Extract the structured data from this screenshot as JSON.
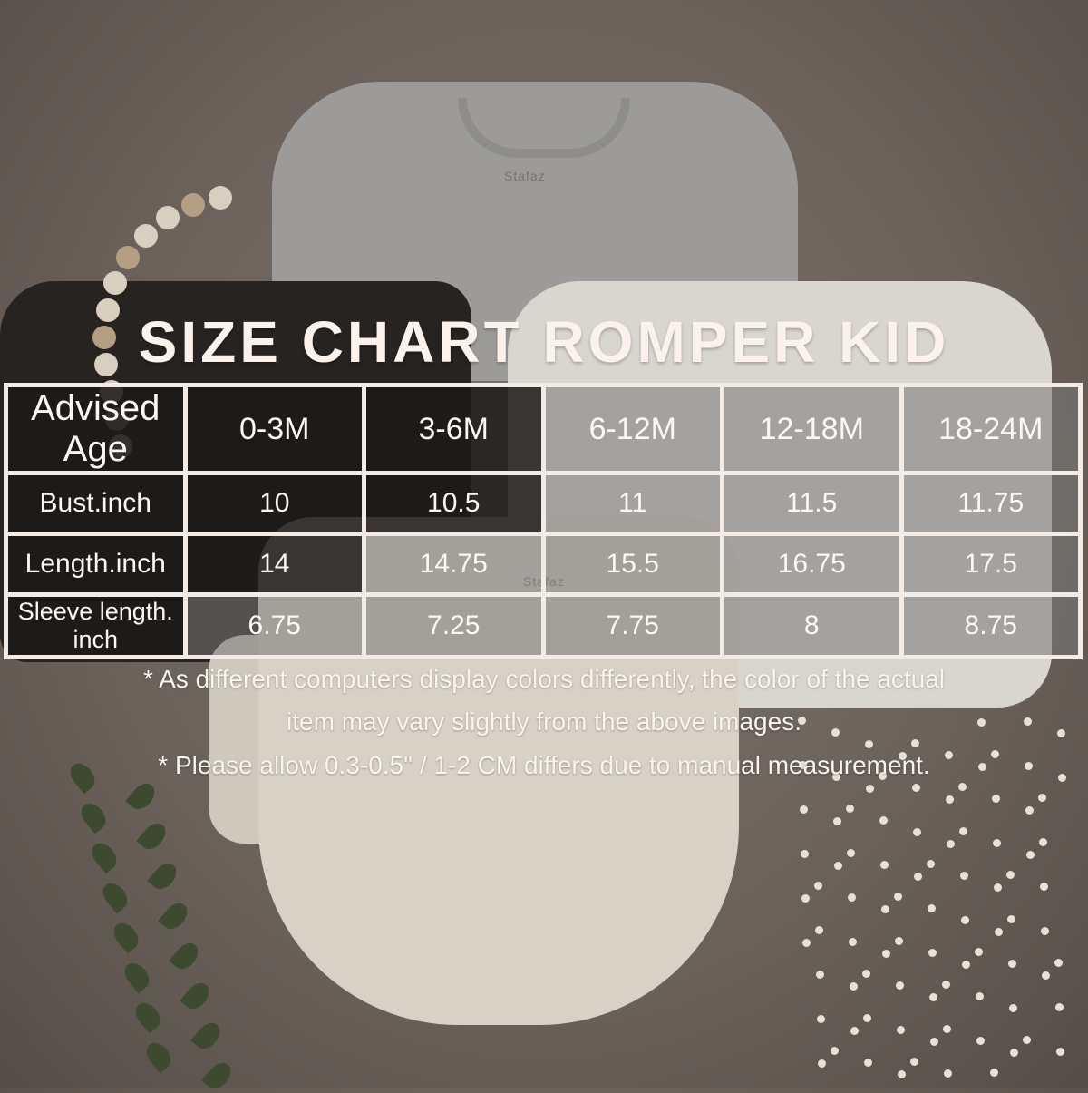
{
  "title": "SIZE CHART ROMPER KID",
  "brand_tag": "Stafaz",
  "table": {
    "header": {
      "label": "Advised Age",
      "sizes": [
        "0-3M",
        "3-6M",
        "6-12M",
        "12-18M",
        "18-24M"
      ]
    },
    "rows": [
      {
        "label": "Bust.inch",
        "values": [
          "10",
          "10.5",
          "11",
          "11.5",
          "11.75"
        ]
      },
      {
        "label": "Length.inch",
        "values": [
          "14",
          "14.75",
          "15.5",
          "16.75",
          "17.5"
        ]
      },
      {
        "label": "Sleeve length. inch",
        "values": [
          "6.75",
          "7.25",
          "7.75",
          "8",
          "8.75"
        ]
      }
    ]
  },
  "notes": [
    "* As different computers display colors differently, the color of the actual",
    "item may vary slightly from the above images.",
    "* Please allow 0.3-0.5\" / 1-2 CM differs due to manual measurement."
  ],
  "colors": {
    "text": "#fbf2ec",
    "border": "#f3ece6",
    "background": "#6f665f"
  }
}
